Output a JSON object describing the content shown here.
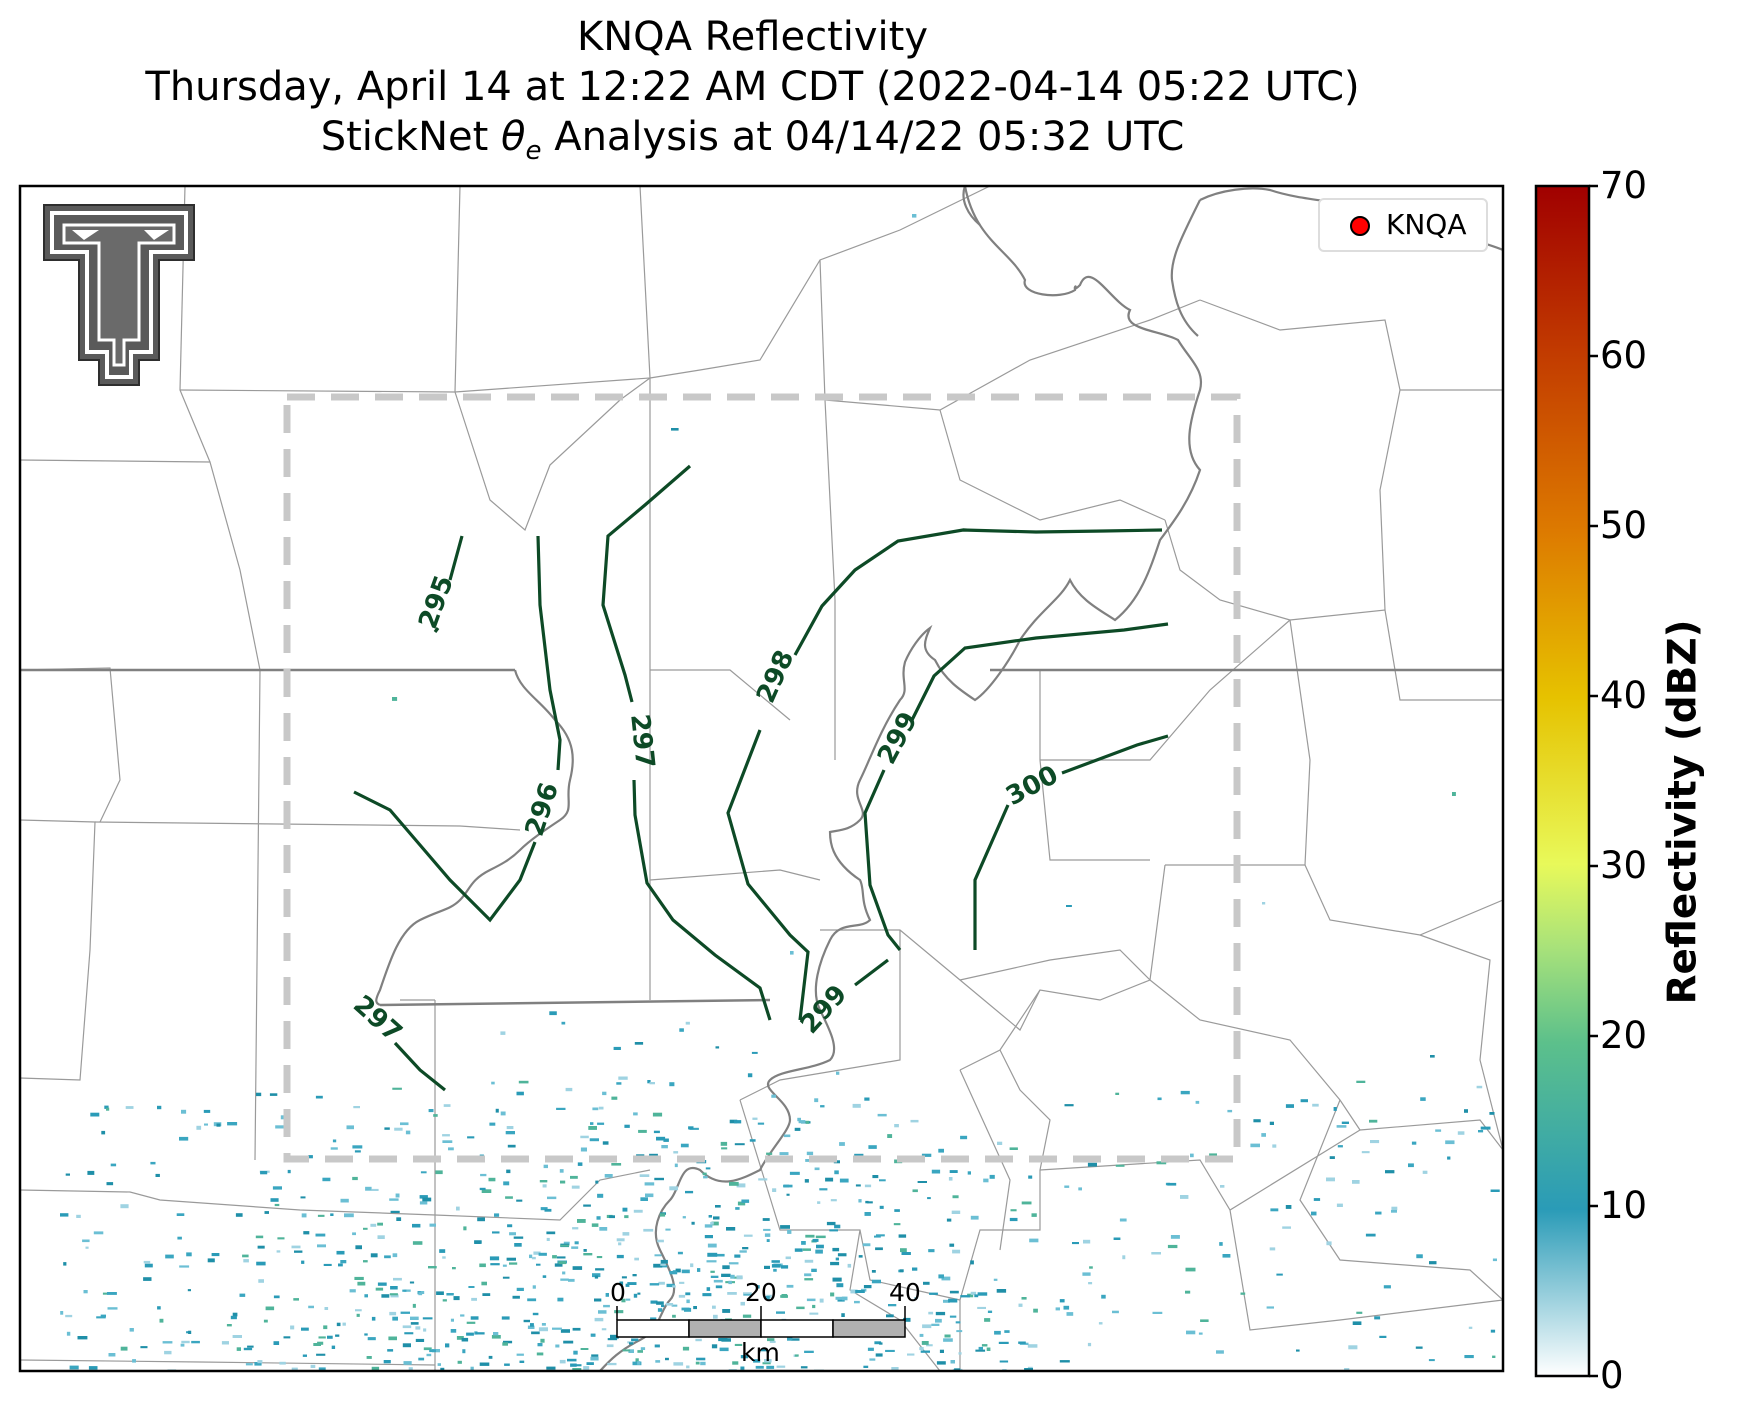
{
  "title": {
    "line1": "KNQA Reflectivity",
    "line2": "Thursday, April 14 at 12:22 AM CDT (2022-04-14 05:22 UTC)",
    "line3_prefix": "StickNet ",
    "line3_symbol": "θ",
    "line3_sub": "e",
    "line3_suffix": " Analysis at 04/14/22 05:32 UTC"
  },
  "legend": {
    "label": "KNQA",
    "marker_color": "#ff0000"
  },
  "colorbar": {
    "label": "Reflectivity (dBZ)",
    "ticks": [
      "70",
      "60",
      "50",
      "40",
      "30",
      "20",
      "10",
      "0"
    ],
    "range": [
      0,
      70
    ],
    "colors": [
      "#ffffff",
      "#2a9bb7",
      "#5cc08b",
      "#a8e27a",
      "#e8f95a",
      "#e6c200",
      "#dd7a00",
      "#c23b00",
      "#a00000"
    ]
  },
  "contours": {
    "color": "#0d4a26",
    "labels": [
      "295",
      "296",
      "297",
      "297",
      "298",
      "299",
      "299",
      "300"
    ]
  },
  "scalebar": {
    "ticks": [
      "0",
      "20",
      "40"
    ],
    "unit": "km"
  },
  "logo": {
    "name": "texas-tech-double-t-logo"
  }
}
